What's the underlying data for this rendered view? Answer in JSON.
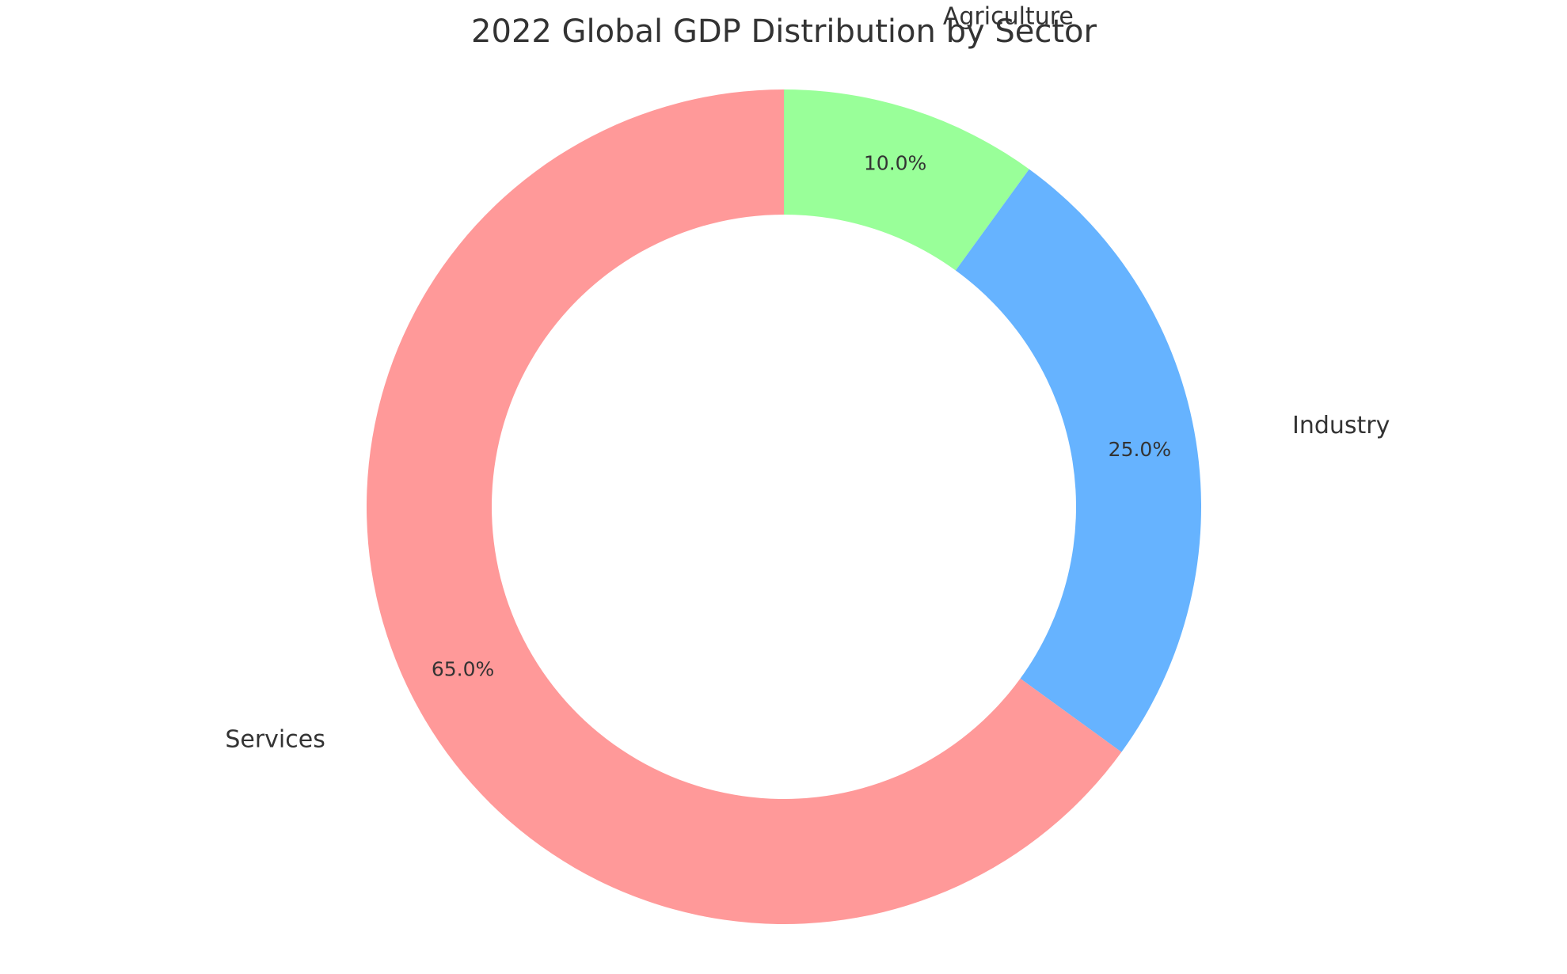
{
  "chart_data": {
    "type": "pie",
    "variant": "donut",
    "title": "2022 Global GDP Distribution by Sector",
    "slices": [
      {
        "label": "Agriculture",
        "value": 10.0,
        "pct_label": "10.0%",
        "color": "#99ff99"
      },
      {
        "label": "Industry",
        "value": 25.0,
        "pct_label": "25.0%",
        "color": "#66b3ff"
      },
      {
        "label": "Services",
        "value": 65.0,
        "pct_label": "65.0%",
        "color": "#ff9999"
      }
    ],
    "start": "top",
    "direction": "clockwise",
    "legend": "none"
  }
}
